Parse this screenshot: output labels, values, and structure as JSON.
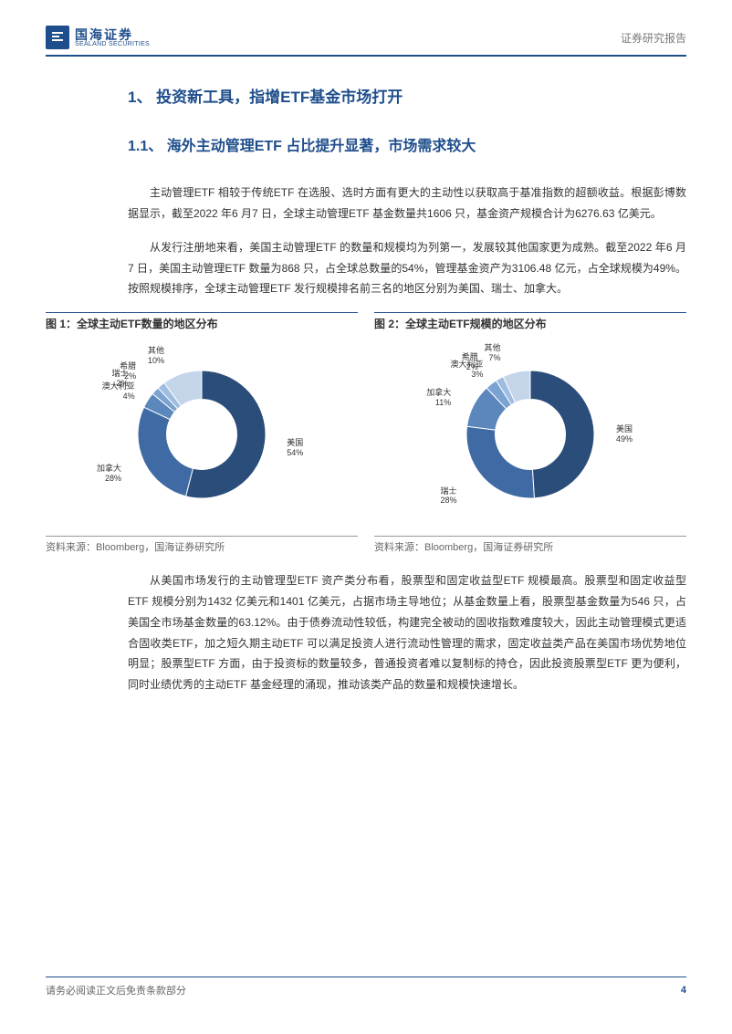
{
  "header": {
    "logo_cn": "国海证券",
    "logo_en": "SEALAND SECURITIES",
    "right": "证券研究报告"
  },
  "section": {
    "h1": "1、 投资新工具，指增ETF基金市场打开",
    "h2": "1.1、 海外主动管理ETF 占比提升显著，市场需求较大",
    "p1": "主动管理ETF 相较于传统ETF 在选股、选时方面有更大的主动性以获取高于基准指数的超额收益。根据彭博数据显示，截至2022 年6 月7 日，全球主动管理ETF 基金数量共1606 只，基金资产规模合计为6276.63 亿美元。",
    "p2": "从发行注册地来看，美国主动管理ETF 的数量和规模均为列第一，发展较其他国家更为成熟。截至2022 年6 月7 日，美国主动管理ETF 数量为868 只，占全球总数量的54%，管理基金资产为3106.48 亿元，占全球规模为49%。按照规模排序，全球主动管理ETF 发行规模排名前三名的地区分别为美国、瑞士、加拿大。",
    "p3": "从美国市场发行的主动管理型ETF 资产类分布看，股票型和固定收益型ETF 规模最高。股票型和固定收益型ETF 规模分别为1432 亿美元和1401 亿美元，占据市场主导地位；从基金数量上看，股票型基金数量为546 只，占美国全市场基金数量的63.12%。由于债券流动性较低，构建完全被动的固收指数难度较大，因此主动管理模式更适合固收类ETF，加之短久期主动ETF 可以满足投资人进行流动性管理的需求，固定收益类产品在美国市场优势地位明显；股票型ETF 方面，由于投资标的数量较多，普通投资者难以复制标的持仓，因此投资股票型ETF 更为便利，同时业绩优秀的主动ETF 基金经理的涌现，推动该类产品的数量和规模快速增长。"
  },
  "figures": {
    "fig1": {
      "title": "图 1：全球主动ETF数量的地区分布",
      "source": "资料来源：Bloomberg，国海证券研究所",
      "type": "donut",
      "inner_radius": 0.55,
      "background_color": "#ffffff",
      "slices": [
        {
          "label": "美国",
          "value": 54,
          "color": "#2a4d7a"
        },
        {
          "label": "加拿大",
          "value": 28,
          "color": "#3f6aa3"
        },
        {
          "label": "澳大利亚",
          "value": 4,
          "color": "#5c87bd"
        },
        {
          "label": "瑞士",
          "value": 2,
          "color": "#7ba3d1"
        },
        {
          "label": "希腊",
          "value": 2,
          "color": "#9fbde0"
        },
        {
          "label": "其他",
          "value": 10,
          "color": "#c4d5ea"
        }
      ],
      "label_fontsize": 9
    },
    "fig2": {
      "title": "图 2：全球主动ETF规模的地区分布",
      "source": "资料来源：Bloomberg，国海证券研究所",
      "type": "donut",
      "inner_radius": 0.55,
      "background_color": "#ffffff",
      "slices": [
        {
          "label": "美国",
          "value": 49,
          "color": "#2a4d7a"
        },
        {
          "label": "瑞士",
          "value": 28,
          "color": "#3f6aa3"
        },
        {
          "label": "加拿大",
          "value": 11,
          "color": "#5c87bd"
        },
        {
          "label": "澳大利亚",
          "value": 3,
          "color": "#7ba3d1"
        },
        {
          "label": "希腊",
          "value": 2,
          "color": "#9fbde0"
        },
        {
          "label": "其他",
          "value": 7,
          "color": "#c4d5ea"
        }
      ],
      "label_fontsize": 9
    }
  },
  "footer": {
    "left": "请务必阅读正文后免责条款部分",
    "page": "4"
  }
}
